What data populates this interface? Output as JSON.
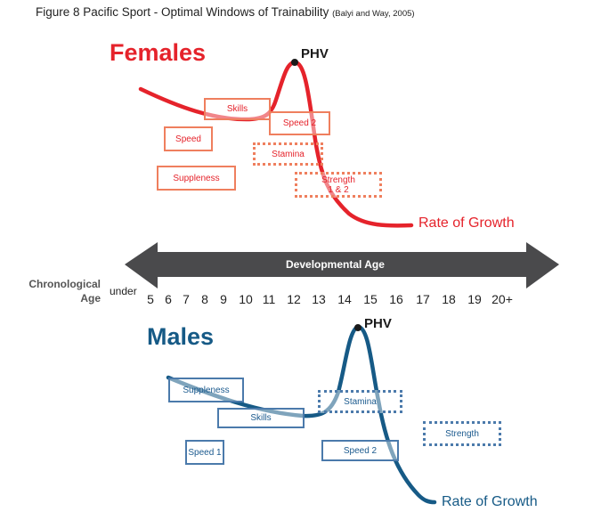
{
  "figure": {
    "title": "Figure 8 Pacific Sport -  Optimal Windows of Trainability",
    "citation": "(Balyi and Way, 2005)"
  },
  "colors": {
    "female": "#e5232b",
    "female_box": "#ef7f5e",
    "male": "#165a86",
    "male_box": "#4b7aab",
    "arrow": "#4a4a4c"
  },
  "females": {
    "label": "Females",
    "phv_label": "PHV",
    "growth_label": "Rate of Growth",
    "windows": [
      {
        "label": "Skills",
        "style": "solid"
      },
      {
        "label": "Speed",
        "style": "solid"
      },
      {
        "label": "Speed 2",
        "style": "solid"
      },
      {
        "label": "Stamina",
        "style": "dotted"
      },
      {
        "label": "Suppleness",
        "style": "solid"
      },
      {
        "label": "Strength\n1 & 2",
        "style": "dotted"
      }
    ]
  },
  "axis": {
    "arrow_label": "Developmental Age",
    "row_label_line1": "Chronological",
    "row_label_line2": "Age",
    "under_label": "under",
    "ticks": [
      "5",
      "6",
      "7",
      "8",
      "9",
      "10",
      "11",
      "12",
      "13",
      "14",
      "15",
      "16",
      "17",
      "18",
      "19",
      "20+"
    ]
  },
  "males": {
    "label": "Males",
    "phv_label": "PHV",
    "growth_label": "Rate of Growth",
    "windows": [
      {
        "label": "Suppleness",
        "style": "solid"
      },
      {
        "label": "Skills",
        "style": "solid"
      },
      {
        "label": "Stamina",
        "style": "dotted"
      },
      {
        "label": "Strength",
        "style": "dotted"
      },
      {
        "label": "Speed 1",
        "style": "solid"
      },
      {
        "label": "Speed 2",
        "style": "solid"
      }
    ]
  }
}
